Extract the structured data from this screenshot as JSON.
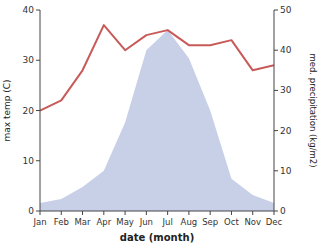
{
  "chart_data": {
    "type": "line",
    "xlabel": "date (month)",
    "ylabel": "max temp (C)",
    "y2label": "med. precipitation (kg/m2)",
    "categories": [
      "Jan",
      "Feb",
      "Mar",
      "Apr",
      "May",
      "Jun",
      "Jul",
      "Aug",
      "Sep",
      "Oct",
      "Nov",
      "Dec"
    ],
    "series": [
      {
        "type": "line",
        "color": "#c85a5a",
        "values": [
          20,
          22,
          28,
          37,
          32,
          35,
          36,
          33,
          33,
          34,
          28,
          29
        ]
      },
      {
        "type": "area",
        "color": "#c8d0e8",
        "axis": "y2",
        "values": [
          2,
          3,
          6,
          10,
          22,
          40,
          45,
          38,
          25,
          8,
          4,
          2
        ]
      }
    ],
    "ylim": [
      0,
      40
    ],
    "yticks": [
      0,
      10,
      20,
      30,
      40
    ],
    "y2lim": [
      0,
      50
    ],
    "y2ticks": [
      0,
      10,
      20,
      30,
      40,
      50
    ],
    "grid": false
  }
}
